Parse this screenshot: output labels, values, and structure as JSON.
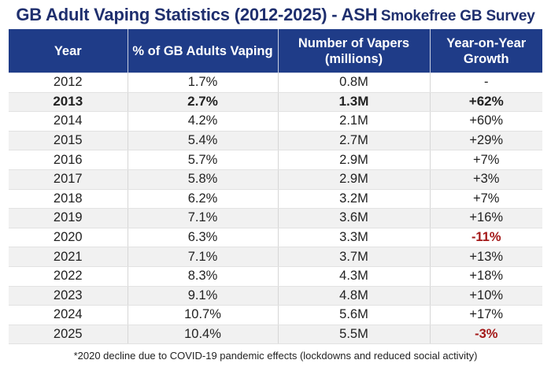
{
  "title": {
    "main": "GB Adult Vaping Statistics (2012-2025) - ASH",
    "secondary": "Smokefree GB Survey"
  },
  "table": {
    "headers": [
      "Year",
      "% of GB Adults Vaping",
      "Number of Vapers (millions)",
      "Year-on-Year Growth"
    ],
    "rows": [
      {
        "year": "2012",
        "pct": "1.7%",
        "vapers": "0.8M",
        "growth": "-",
        "bold": false,
        "negative": false
      },
      {
        "year": "2013",
        "pct": "2.7%",
        "vapers": "1.3M",
        "growth": "+62%",
        "bold": true,
        "negative": false
      },
      {
        "year": "2014",
        "pct": "4.2%",
        "vapers": "2.1M",
        "growth": "+60%",
        "bold": false,
        "negative": false
      },
      {
        "year": "2015",
        "pct": "5.4%",
        "vapers": "2.7M",
        "growth": "+29%",
        "bold": false,
        "negative": false
      },
      {
        "year": "2016",
        "pct": "5.7%",
        "vapers": "2.9M",
        "growth": "+7%",
        "bold": false,
        "negative": false
      },
      {
        "year": "2017",
        "pct": "5.8%",
        "vapers": "2.9M",
        "growth": "+3%",
        "bold": false,
        "negative": false
      },
      {
        "year": "2018",
        "pct": "6.2%",
        "vapers": "3.2M",
        "growth": "+7%",
        "bold": false,
        "negative": false
      },
      {
        "year": "2019",
        "pct": "7.1%",
        "vapers": "3.6M",
        "growth": "+16%",
        "bold": false,
        "negative": false
      },
      {
        "year": "2020",
        "pct": "6.3%",
        "vapers": "3.3M",
        "growth": "-11%",
        "bold": false,
        "negative": true
      },
      {
        "year": "2021",
        "pct": "7.1%",
        "vapers": "3.7M",
        "growth": "+13%",
        "bold": false,
        "negative": false
      },
      {
        "year": "2022",
        "pct": "8.3%",
        "vapers": "4.3M",
        "growth": "+18%",
        "bold": false,
        "negative": false
      },
      {
        "year": "2023",
        "pct": "9.1%",
        "vapers": "4.8M",
        "growth": "+10%",
        "bold": false,
        "negative": false
      },
      {
        "year": "2024",
        "pct": "10.7%",
        "vapers": "5.6M",
        "growth": "+17%",
        "bold": false,
        "negative": false
      },
      {
        "year": "2025",
        "pct": "10.4%",
        "vapers": "5.5M",
        "growth": "-3%",
        "bold": false,
        "negative": true
      }
    ]
  },
  "footnote": "*2020 decline due to COVID-19 pandemic effects (lockdowns and reduced social activity)",
  "colors": {
    "header_bg": "#1f3c88",
    "title": "#1f2f6e",
    "negative": "#a31818",
    "stripe": "#f1f1f1"
  }
}
